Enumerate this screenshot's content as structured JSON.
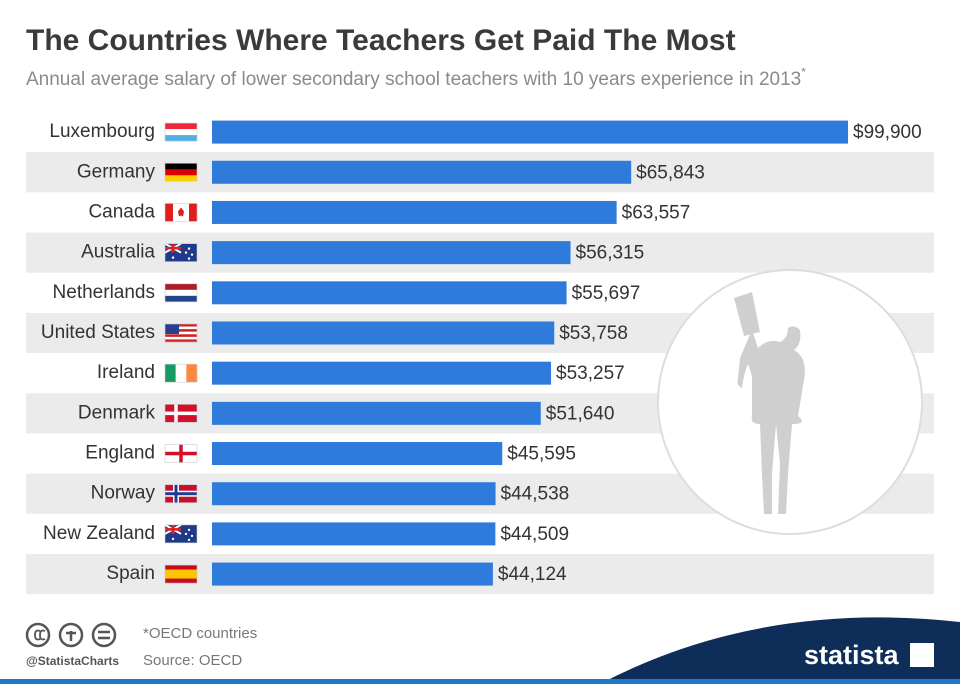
{
  "chart_data": {
    "type": "bar",
    "orientation": "horizontal",
    "title": "The Countries Where Teachers Get Paid The Most",
    "subtitle": "Annual average salary of lower secondary school teachers with 10 years experience in 2013",
    "subtitle_marker": "*",
    "categories": [
      "Luxembourg",
      "Germany",
      "Canada",
      "Australia",
      "Netherlands",
      "United States",
      "Ireland",
      "Denmark",
      "England",
      "Norway",
      "New Zealand",
      "Spain"
    ],
    "values": [
      99900,
      65843,
      63557,
      56315,
      55697,
      53758,
      53257,
      51640,
      45595,
      44538,
      44509,
      44124
    ],
    "value_labels": [
      "$99,900",
      "$65,843",
      "$63,557",
      "$56,315",
      "$55,697",
      "$53,758",
      "$53,257",
      "$51,640",
      "$45,595",
      "$44,538",
      "$44,509",
      "$44,124"
    ],
    "color": "#2e7bdb",
    "xlim": [
      0,
      99900
    ]
  },
  "footer": {
    "note": "*OECD countries",
    "source": "Source: OECD",
    "handle": "@StatistaCharts",
    "brand": "statista"
  }
}
